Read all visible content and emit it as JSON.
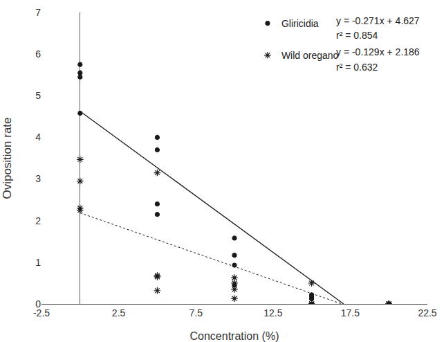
{
  "chart_data": {
    "type": "scatter",
    "x_label": "Concentration (%)",
    "y_label": "Oviposition rate",
    "xlim": [
      -2.5,
      22.5
    ],
    "xticks": [
      -2.5,
      2.5,
      7.5,
      12.5,
      17.5,
      22.5
    ],
    "ylim": [
      0,
      7
    ],
    "yticks": [
      0,
      1,
      2,
      3,
      4,
      5,
      6,
      7
    ],
    "grid": false,
    "legend": "top right",
    "series": [
      {
        "name": "Gliricidia",
        "color": "#1a1a1a",
        "marker": "circle",
        "line_style": "solid",
        "x": [
          0,
          0,
          0,
          0,
          5,
          5,
          5,
          5,
          10,
          10,
          10,
          10,
          15,
          15,
          15,
          15,
          20,
          20,
          20,
          20
        ],
        "values": [
          5.75,
          5.55,
          5.45,
          4.58,
          4.0,
          3.7,
          2.4,
          2.15,
          1.58,
          1.17,
          0.93,
          0.45,
          0.22,
          0.17,
          0.12,
          0.0,
          0,
          0,
          0,
          0
        ],
        "trendline": {
          "x": [
            0,
            17.07
          ],
          "values": [
            4.627,
            0
          ]
        },
        "equation": "y = -0.271x + 4.627",
        "r2": "r² = 0.854"
      },
      {
        "name": "Wild oregano",
        "color": "#1a1a1a",
        "marker": "asterisk",
        "line_style": "dotted",
        "x": [
          0,
          0,
          0,
          0,
          5,
          5,
          5,
          5,
          10,
          10,
          10,
          10,
          15,
          15,
          15,
          15,
          20,
          20,
          20,
          20
        ],
        "values": [
          3.47,
          2.95,
          2.3,
          2.25,
          3.15,
          0.68,
          0.65,
          0.32,
          0.63,
          0.5,
          0.35,
          0.13,
          0.5,
          0,
          0,
          0,
          0,
          0,
          0,
          0
        ],
        "trendline": {
          "x": [
            0,
            16.95
          ],
          "values": [
            2.186,
            0
          ]
        },
        "equation": "y = -0.129x + 2.186",
        "r2": "r² = 0.632"
      }
    ]
  }
}
